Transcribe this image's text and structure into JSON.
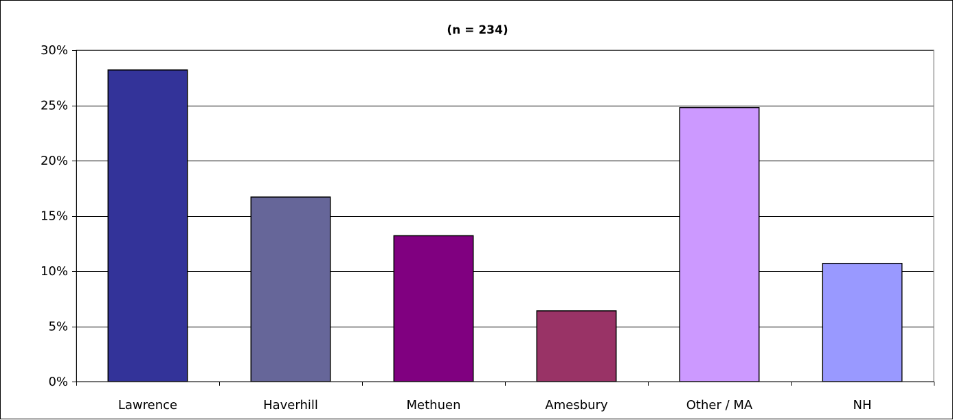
{
  "chart_data": {
    "type": "bar",
    "title": "(n = 234)",
    "xlabel": "",
    "ylabel": "",
    "categories": [
      "Lawrence",
      "Haverhill",
      "Methuen",
      "Amesbury",
      "Other / MA",
      "NH"
    ],
    "values": [
      28.2,
      16.7,
      13.2,
      6.4,
      24.8,
      10.7
    ],
    "colors": [
      "#333399",
      "#666699",
      "#800080",
      "#993366",
      "#CC99FF",
      "#9999FF"
    ],
    "ylim": [
      0,
      30
    ],
    "yticks": [
      0,
      5,
      10,
      15,
      20,
      25,
      30
    ],
    "ytick_labels": [
      "0%",
      "5%",
      "10%",
      "15%",
      "20%",
      "25%",
      "30%"
    ],
    "grid": true,
    "legend": "none"
  }
}
